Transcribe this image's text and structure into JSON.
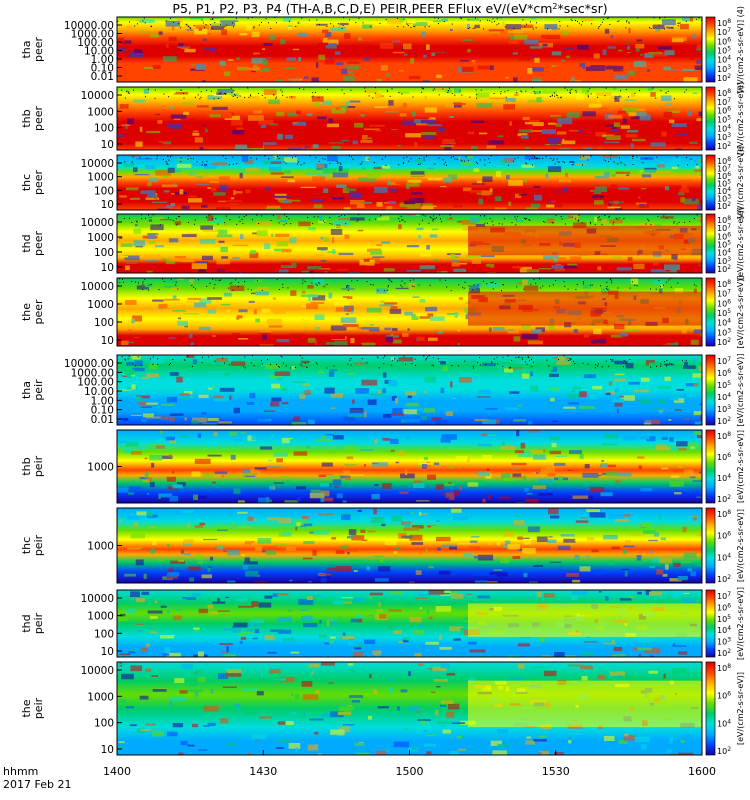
{
  "chart_data": {
    "type": "heatmap",
    "title": "P5, P1, P2, P3, P4 (TH-A,B,C,D,E) PEIR,PEER EFlux eV/(eV*cm^2*sec*sr)",
    "title_parts": {
      "prefix": "P5, P1, P2, P3, P4 (TH-A,B,C,D,E) PEIR,PEER EFlux eV/(eV*cm",
      "sup1": "2",
      "mid": "*sec*sr)"
    },
    "xaxis": {
      "range_hhmm": [
        1400,
        1600
      ],
      "ticks": [
        "1400",
        "1430",
        "1500",
        "1530",
        "1600"
      ],
      "label_line1": "hhmm",
      "label_line2": "2017 Feb 21"
    },
    "colorscale": [
      "#1a00a8",
      "#0044ff",
      "#00aaff",
      "#00dddd",
      "#00cc66",
      "#66dd00",
      "#ffff00",
      "#ffaa00",
      "#ff4400",
      "#dd0000"
    ],
    "panels": [
      {
        "probe": "tha",
        "inst": "peer",
        "yticks": [
          "10000.00",
          "1000.00",
          "100.00",
          "10.00",
          "1.00",
          "0.10",
          "0.01"
        ],
        "cbar": [
          "10^8",
          "10^7",
          "10^6",
          "10^5",
          "10^4",
          "10^3",
          "10^2"
        ],
        "cbar_label": "[eV/(cm2-s-sr-eV)] (4)",
        "style": "tha_peer"
      },
      {
        "probe": "thb",
        "inst": "peer",
        "yticks": [
          "10000",
          "1000",
          "100",
          "10"
        ],
        "cbar": [
          "10^8",
          "10^7",
          "10^6",
          "10^5",
          "10^4",
          "10^3",
          "10^2"
        ],
        "cbar_label": "[eV/(cm2-s-sr-eV)]",
        "style": "band_peer"
      },
      {
        "probe": "thc",
        "inst": "peer",
        "yticks": [
          "10000",
          "1000",
          "100",
          "10"
        ],
        "cbar": [
          "10^8",
          "10^7",
          "10^6",
          "10^5",
          "10^4",
          "10^3",
          "10^2"
        ],
        "cbar_label": "[eV/(cm2-s-sr-eV)]",
        "style": "thc_peer"
      },
      {
        "probe": "thd",
        "inst": "peer",
        "yticks": [
          "10000",
          "1000",
          "100",
          "10"
        ],
        "cbar": [
          "10^8",
          "10^7",
          "10^6",
          "10^5",
          "10^4",
          "10^3",
          "10^2"
        ],
        "cbar_label": "[eV/(cm2-s-sr-eV)]",
        "style": "evolve_peer"
      },
      {
        "probe": "the",
        "inst": "peer",
        "yticks": [
          "10000",
          "1000",
          "100",
          "10"
        ],
        "cbar": [
          "10^8",
          "10^7",
          "10^6",
          "10^5",
          "10^4",
          "10^3",
          "10^2"
        ],
        "cbar_label": "[eV/(cm2-s-sr-eV)]",
        "style": "evolve_peer"
      },
      {
        "probe": "tha",
        "inst": "peir",
        "yticks": [
          "10000.00",
          "1000.00",
          "100.00",
          "10.00",
          "1.00",
          "0.10",
          "0.01"
        ],
        "cbar": [
          "10^7",
          "10^6",
          "10^5",
          "10^4",
          "10^3",
          "10^2"
        ],
        "cbar_label": "[eV/(cm2-s-sr-eV)]",
        "style": "tha_peir"
      },
      {
        "probe": "thb",
        "inst": "peir",
        "yticks": [
          "1000"
        ],
        "cbar": [
          "10^8",
          "10^6",
          "10^4",
          "10^2"
        ],
        "cbar_label": "[eV/(cm2-s-sr-eV)]",
        "style": "band_peir"
      },
      {
        "probe": "thc",
        "inst": "peir",
        "yticks": [
          "1000"
        ],
        "cbar": [
          "10^8",
          "10^6",
          "10^4",
          "10^2"
        ],
        "cbar_label": "[eV/(cm2-s-sr-eV)]",
        "style": "band_peir"
      },
      {
        "probe": "thd",
        "inst": "peir",
        "yticks": [
          "10000",
          "1000",
          "100",
          "10"
        ],
        "cbar": [
          "10^7",
          "10^6",
          "10^5",
          "10^4",
          "10^3",
          "10^2"
        ],
        "cbar_label": "[eV/(cm2-s-sr-eV)]",
        "style": "evolve_peir"
      },
      {
        "probe": "the",
        "inst": "peir",
        "yticks": [
          "10000",
          "1000",
          "100",
          "10"
        ],
        "cbar": [
          "10^8",
          "10^6",
          "10^4",
          "10^2"
        ],
        "cbar_label": "[eV/(cm2-s-sr-eV)]",
        "style": "evolve_peir"
      }
    ]
  }
}
